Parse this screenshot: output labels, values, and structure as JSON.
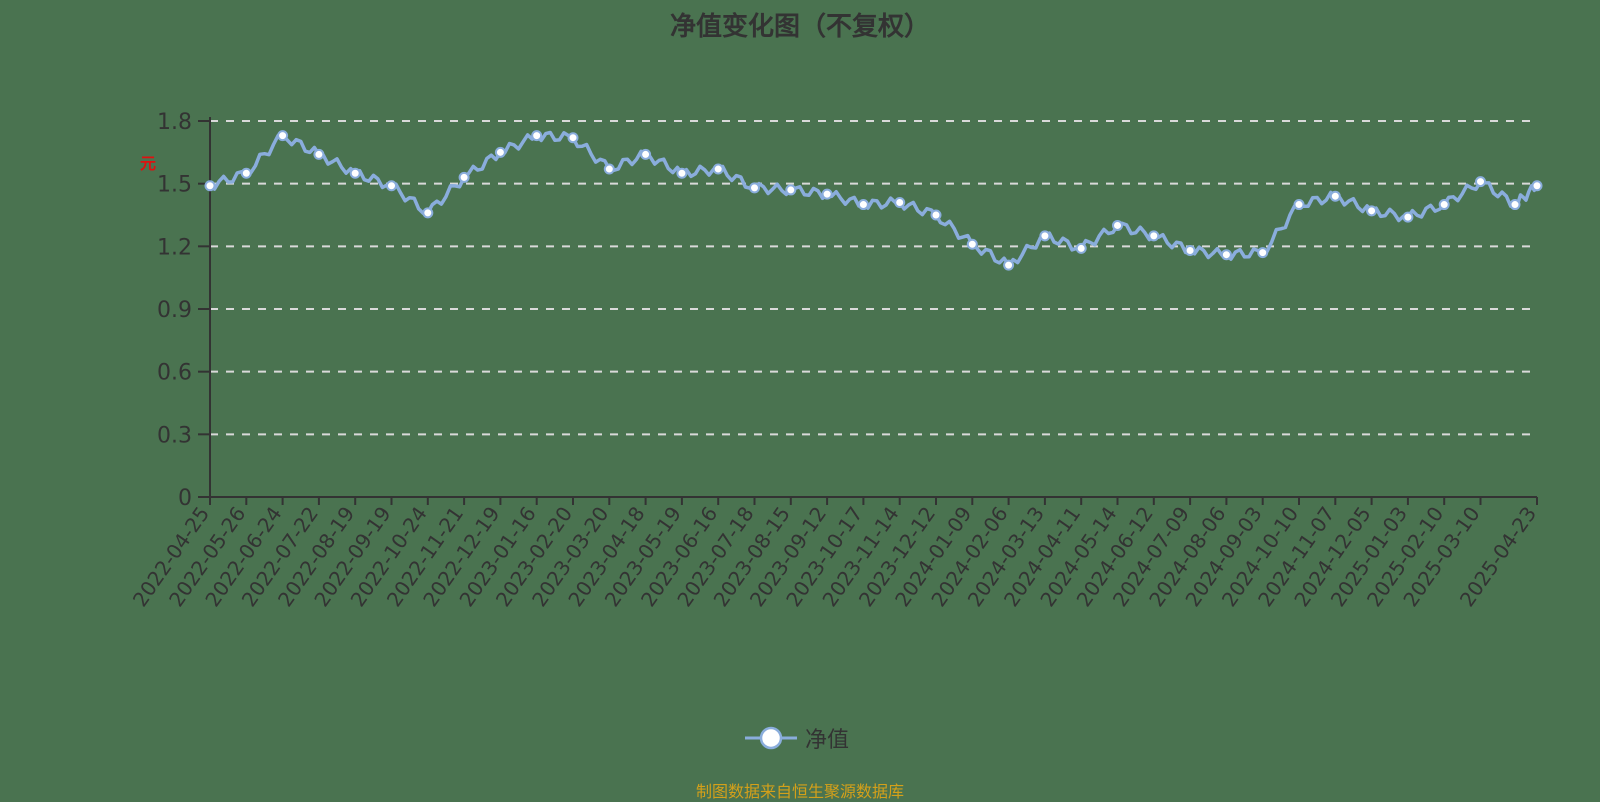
{
  "title": "净值变化图（不复权）",
  "y_unit_glyph": "元",
  "legend": {
    "label": "净值",
    "color": "#8aaddc"
  },
  "footer": "制图数据来自恒生聚源数据库",
  "colors": {
    "background": "#4a7350",
    "line": "#8aaddc",
    "axis": "#333333",
    "grid": "#d9d9d9",
    "footer": "#d4a01a"
  },
  "chart_data": {
    "type": "line",
    "title": "净值变化图（不复权）",
    "xlabel": "",
    "ylabel": "元",
    "ylim": [
      0,
      1.8
    ],
    "yticks": [
      0,
      0.3,
      0.6,
      0.9,
      1.2,
      1.5,
      1.8
    ],
    "grid": "horizontal dashed",
    "legend_position": "bottom-center",
    "categories": [
      "2022-04-25",
      "2022-05-26",
      "2022-06-24",
      "2022-07-22",
      "2022-08-19",
      "2022-09-19",
      "2022-10-24",
      "2022-11-21",
      "2022-12-19",
      "2023-01-16",
      "2023-02-20",
      "2023-03-20",
      "2023-04-18",
      "2023-05-19",
      "2023-06-16",
      "2023-07-18",
      "2023-08-15",
      "2023-09-12",
      "2023-10-17",
      "2023-11-14",
      "2023-12-12",
      "2024-01-09",
      "2024-02-06",
      "2024-03-13",
      "2024-04-11",
      "2024-05-14",
      "2024-06-12",
      "2024-07-09",
      "2024-08-06",
      "2024-09-03",
      "2024-10-10",
      "2024-11-07",
      "2024-12-05",
      "2025-01-03",
      "2025-02-10",
      "2025-03-10",
      "2025-04-23"
    ],
    "series": [
      {
        "name": "净值",
        "values": [
          1.49,
          1.55,
          1.73,
          1.64,
          1.55,
          1.49,
          1.36,
          1.53,
          1.65,
          1.73,
          1.72,
          1.57,
          1.64,
          1.55,
          1.57,
          1.48,
          1.47,
          1.45,
          1.4,
          1.41,
          1.35,
          1.21,
          1.11,
          1.25,
          1.19,
          1.3,
          1.25,
          1.18,
          1.16,
          1.17,
          1.4,
          1.44,
          1.37,
          1.34,
          1.4,
          1.51,
          1.49
        ]
      }
    ],
    "extra_marker": {
      "date_between": "2025-03-10 and 2025-04-23",
      "value": 1.4
    }
  }
}
